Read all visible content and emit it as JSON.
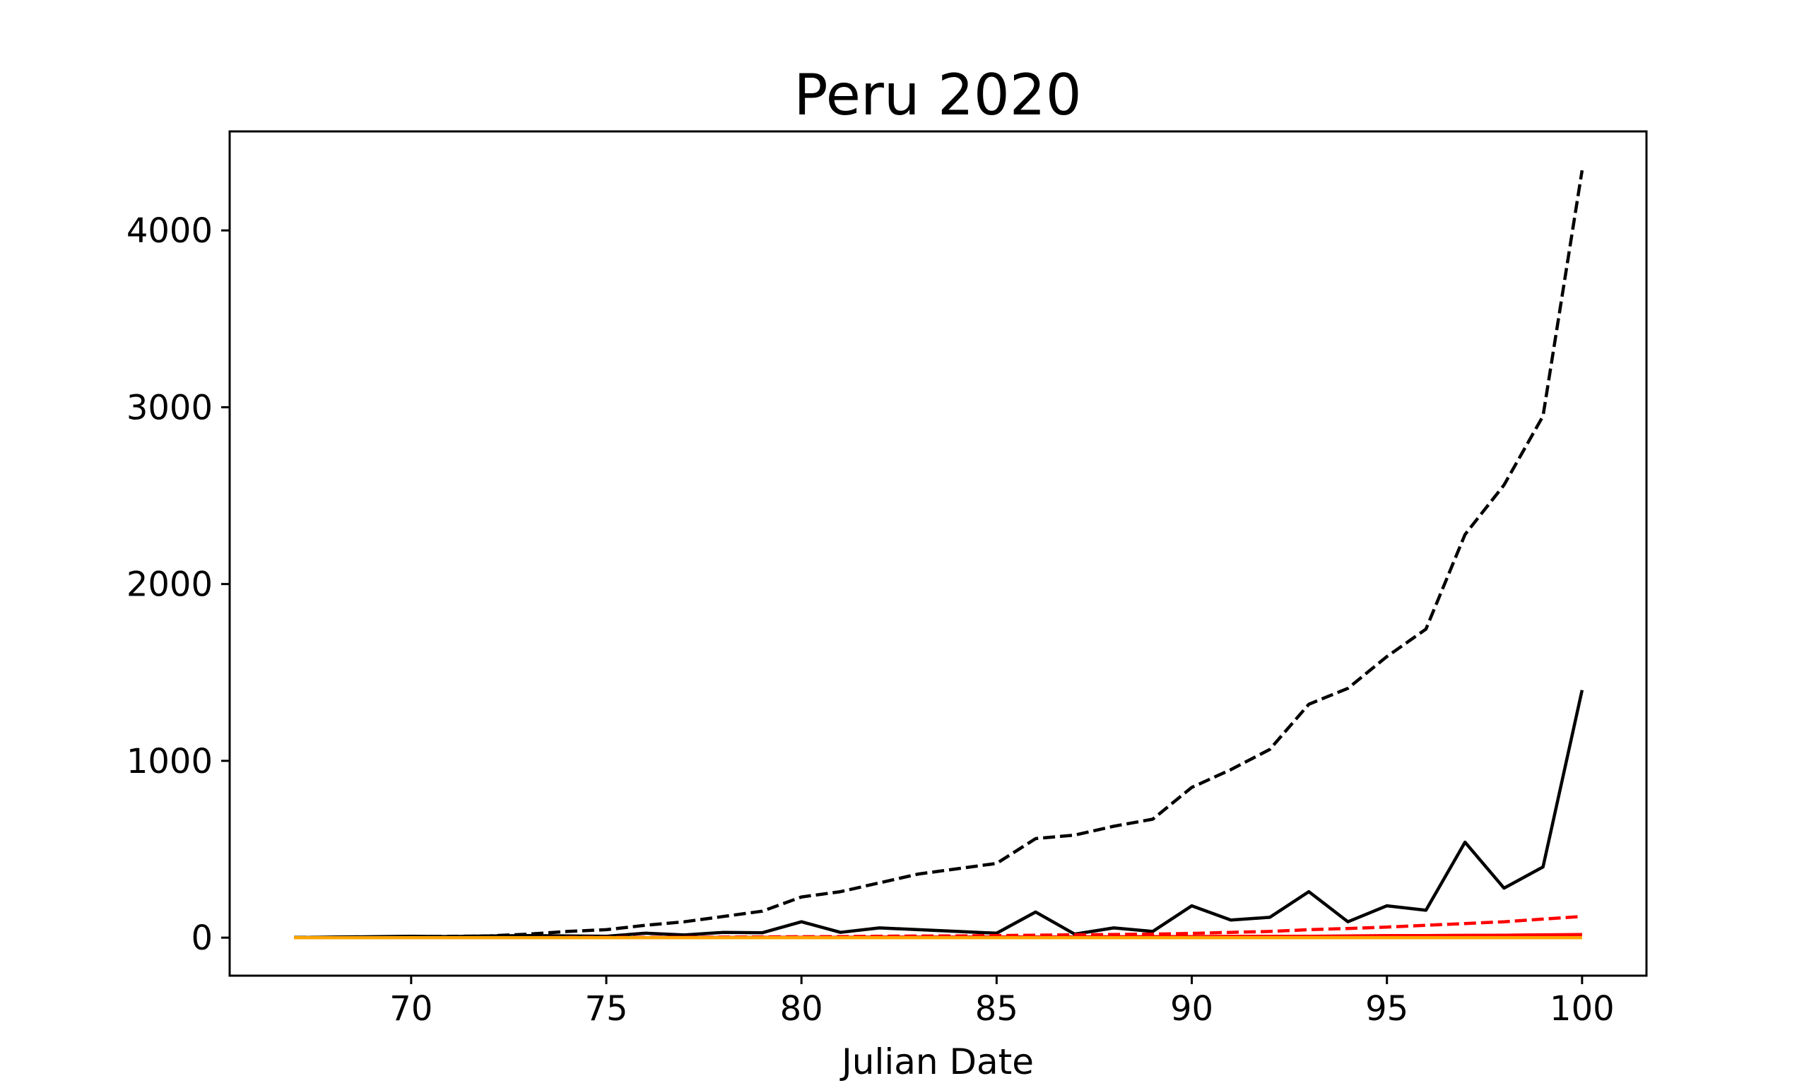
{
  "chart_data": {
    "type": "line",
    "title": "Peru 2020",
    "xlabel": "Julian Date",
    "ylabel": "",
    "xlim": [
      65.35,
      101.65
    ],
    "ylim": [
      -215,
      4560
    ],
    "xticks": [
      70,
      75,
      80,
      85,
      90,
      95,
      100
    ],
    "yticks": [
      0,
      1000,
      2000,
      3000,
      4000
    ],
    "xtick_labels": [
      "70",
      "75",
      "80",
      "85",
      "90",
      "95",
      "100"
    ],
    "ytick_labels": [
      "0",
      "1000",
      "2000",
      "3000",
      "4000"
    ],
    "grid": false,
    "legend": false,
    "x": [
      67,
      68,
      69,
      70,
      71,
      72,
      73,
      74,
      75,
      76,
      77,
      78,
      79,
      80,
      81,
      82,
      83,
      84,
      85,
      86,
      87,
      88,
      89,
      90,
      91,
      92,
      93,
      94,
      95,
      96,
      97,
      98,
      99,
      100
    ],
    "series": [
      {
        "color": "#000000",
        "style": "dashed",
        "values": [
          1,
          2,
          4,
          5,
          7,
          10,
          20,
          35,
          45,
          70,
          90,
          120,
          150,
          230,
          260,
          310,
          360,
          390,
          420,
          560,
          580,
          630,
          670,
          850,
          950,
          1065,
          1320,
          1410,
          1590,
          1745,
          2280,
          2560,
          2950,
          4340
        ]
      },
      {
        "color": "#000000",
        "style": "solid",
        "values": [
          0,
          3,
          5,
          8,
          6,
          10,
          12,
          10,
          8,
          25,
          15,
          30,
          28,
          90,
          30,
          55,
          45,
          35,
          25,
          145,
          20,
          55,
          35,
          180,
          100,
          115,
          260,
          90,
          180,
          155,
          540,
          280,
          400,
          1400
        ]
      },
      {
        "color": "#ff0000",
        "style": "dashed",
        "values": [
          0,
          0,
          0,
          0,
          0,
          0,
          0,
          1,
          1,
          2,
          2,
          3,
          4,
          5,
          6,
          8,
          9,
          10,
          12,
          14,
          16,
          18,
          20,
          24,
          30,
          35,
          45,
          52,
          60,
          70,
          80,
          90,
          105,
          120
        ]
      },
      {
        "color": "#ff0000",
        "style": "solid",
        "values": [
          0,
          0,
          0,
          0,
          0,
          0,
          0,
          0,
          0,
          0,
          1,
          1,
          2,
          2,
          2,
          3,
          3,
          3,
          4,
          4,
          4,
          5,
          6,
          6,
          7,
          7,
          8,
          10,
          12,
          12,
          13,
          14,
          16,
          18
        ]
      },
      {
        "color": "#ffa500",
        "style": "solid",
        "values": [
          0,
          0,
          0,
          0,
          0,
          0,
          0,
          0,
          0,
          0,
          0,
          0,
          0,
          0,
          0,
          0,
          0,
          0,
          0,
          0,
          0,
          0,
          0,
          0,
          0,
          0,
          0,
          0,
          0,
          0,
          0,
          0,
          0,
          0
        ]
      }
    ]
  }
}
